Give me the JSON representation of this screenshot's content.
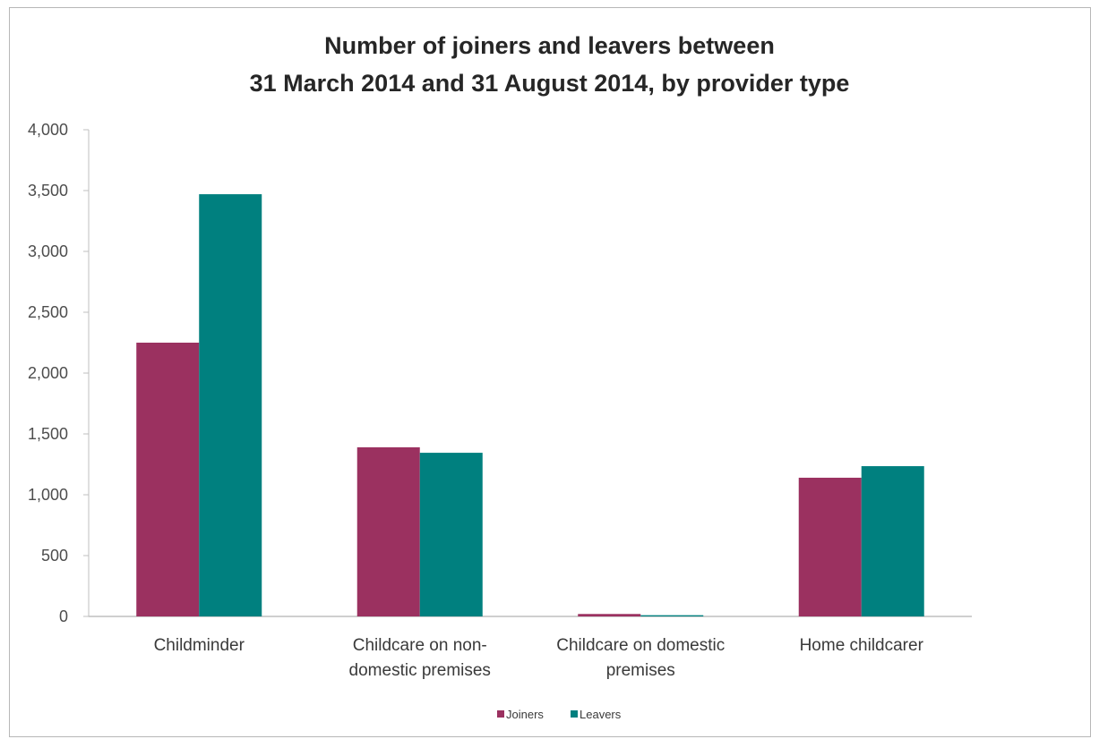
{
  "chart_data": {
    "type": "bar",
    "title_line1": "Number of joiners and leavers between",
    "title_line2": "31 March 2014 and 31 August 2014, by provider type",
    "categories": [
      [
        "Childminder"
      ],
      [
        "Childcare on non-",
        "domestic premises"
      ],
      [
        "Childcare on domestic",
        "premises"
      ],
      [
        "Home childcarer"
      ]
    ],
    "series": [
      {
        "name": "Joiners",
        "color": "#9b3160",
        "values": [
          2250,
          1390,
          20,
          1140
        ]
      },
      {
        "name": "Leavers",
        "color": "#00807f",
        "values": [
          3470,
          1345,
          10,
          1235
        ]
      }
    ],
    "ylim": [
      0,
      4000
    ],
    "yticks": [
      0,
      500,
      1000,
      1500,
      2000,
      2500,
      3000,
      3500,
      4000
    ],
    "ytick_labels": [
      "0",
      "500",
      "1,000",
      "1,500",
      "2,000",
      "2,500",
      "3,000",
      "3,500",
      "4,000"
    ],
    "grid": false,
    "legend_position": "bottom"
  }
}
